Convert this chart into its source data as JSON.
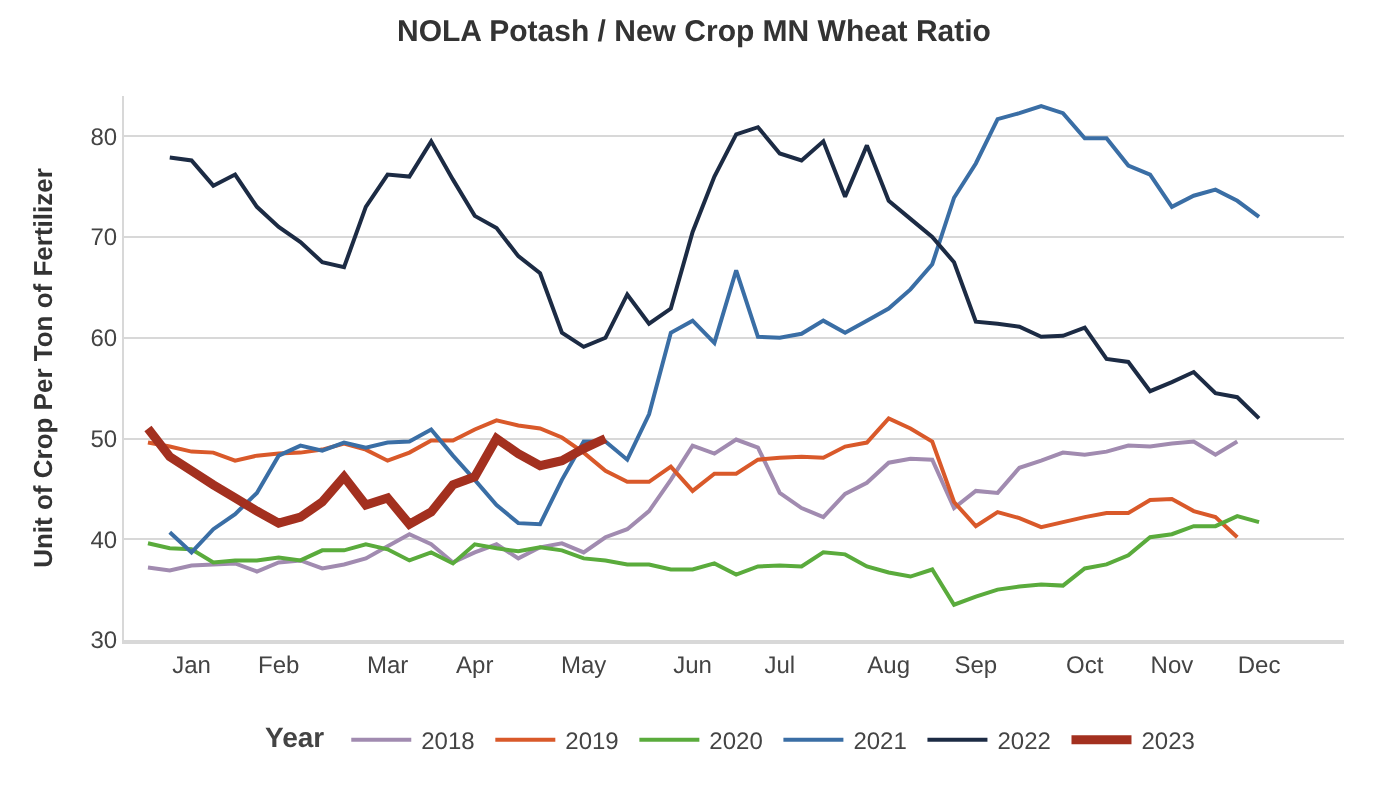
{
  "chart_data": {
    "type": "line",
    "title": "NOLA Potash / New Crop MN Wheat Ratio",
    "ylabel": "Unit of Crop Per Ton of Fertilizer",
    "legend_title": "Year",
    "categories": [
      null,
      null,
      "Jan",
      null,
      null,
      null,
      "Feb",
      null,
      null,
      null,
      null,
      "Mar",
      null,
      null,
      null,
      "Apr",
      null,
      null,
      null,
      null,
      "May",
      null,
      null,
      null,
      null,
      "Jun",
      null,
      null,
      null,
      "Jul",
      null,
      null,
      null,
      null,
      "Aug",
      null,
      null,
      null,
      "Sep",
      null,
      null,
      null,
      null,
      "Oct",
      null,
      null,
      null,
      "Nov",
      null,
      null,
      null,
      "Dec"
    ],
    "ylim": [
      30,
      84
    ],
    "yticks": [
      30,
      40,
      50,
      60,
      70,
      80
    ],
    "grid": "y",
    "legend": "bottom",
    "marker": "none",
    "line_style": "solid",
    "series": [
      {
        "name": "2018",
        "color": "#a18bb0",
        "values": [
          37.2,
          36.9,
          37.4,
          37.5,
          37.6,
          36.8,
          37.7,
          37.9,
          37.1,
          37.5,
          38.1,
          39.3,
          40.5,
          39.5,
          37.7,
          38.7,
          39.5,
          38.1,
          39.2,
          39.6,
          38.7,
          40.2,
          41.0,
          42.8,
          45.9,
          49.3,
          48.5,
          49.9,
          49.1,
          44.6,
          43.1,
          42.2,
          44.5,
          45.6,
          47.6,
          48.0,
          47.9,
          43.1,
          44.8,
          44.6,
          47.1,
          47.8,
          48.6,
          48.4,
          48.7,
          49.3,
          49.2,
          49.5,
          49.7,
          48.4,
          49.7,
          null
        ]
      },
      {
        "name": "2019",
        "color": "#d9592a",
        "values": [
          49.6,
          49.2,
          48.7,
          48.6,
          47.8,
          48.3,
          48.5,
          48.6,
          48.9,
          49.5,
          48.9,
          47.8,
          48.6,
          49.8,
          49.8,
          50.9,
          51.8,
          51.3,
          51.0,
          50.1,
          48.6,
          46.8,
          45.7,
          45.7,
          47.2,
          44.8,
          46.5,
          46.5,
          47.9,
          48.1,
          48.2,
          48.1,
          49.2,
          49.6,
          52.0,
          51.0,
          49.7,
          43.7,
          41.3,
          42.7,
          42.1,
          41.2,
          41.7,
          42.2,
          42.6,
          42.6,
          43.9,
          44.0,
          42.8,
          42.2,
          40.2,
          null
        ]
      },
      {
        "name": "2020",
        "color": "#5aab3c",
        "values": [
          39.6,
          39.1,
          39.0,
          37.7,
          37.9,
          37.9,
          38.2,
          37.9,
          38.9,
          38.9,
          39.5,
          39.0,
          37.9,
          38.7,
          37.6,
          39.5,
          39.1,
          38.8,
          39.2,
          38.9,
          38.1,
          37.9,
          37.5,
          37.5,
          37.0,
          37.0,
          37.6,
          36.5,
          37.3,
          37.4,
          37.3,
          38.7,
          38.5,
          37.3,
          36.7,
          36.3,
          37.0,
          33.5,
          34.3,
          35.0,
          35.3,
          35.5,
          35.4,
          37.1,
          37.5,
          38.4,
          40.2,
          40.5,
          41.3,
          41.3,
          42.3,
          41.7
        ]
      },
      {
        "name": "2021",
        "color": "#3a6ea5",
        "values": [
          null,
          40.7,
          38.7,
          41.0,
          42.5,
          44.6,
          48.3,
          49.3,
          48.8,
          49.6,
          49.1,
          49.6,
          49.7,
          50.9,
          48.3,
          45.9,
          43.4,
          41.6,
          41.5,
          45.9,
          49.7,
          49.7,
          47.9,
          52.4,
          60.5,
          61.7,
          59.5,
          66.7,
          60.1,
          60.0,
          60.4,
          61.7,
          60.5,
          61.7,
          62.9,
          64.8,
          67.3,
          73.9,
          77.3,
          81.7,
          82.3,
          83.0,
          82.3,
          79.8,
          79.8,
          77.1,
          76.2,
          73.0,
          74.1,
          74.7,
          73.6,
          72.0
        ]
      },
      {
        "name": "2022",
        "color": "#1c2b44",
        "values": [
          null,
          77.9,
          77.6,
          75.1,
          76.2,
          73.0,
          71.0,
          69.5,
          67.5,
          67.0,
          73.0,
          76.2,
          76.0,
          79.5,
          75.7,
          72.1,
          70.9,
          68.1,
          66.4,
          60.5,
          59.1,
          60.0,
          64.3,
          61.4,
          62.9,
          70.5,
          76.0,
          80.2,
          80.9,
          78.3,
          77.6,
          79.5,
          74.0,
          79.1,
          73.6,
          71.8,
          70.0,
          67.5,
          61.6,
          61.4,
          61.1,
          60.1,
          60.2,
          61.0,
          57.9,
          57.6,
          54.7,
          55.6,
          56.6,
          54.5,
          54.1,
          52.0
        ]
      },
      {
        "name": "2023",
        "color": "#a3301f",
        "values": [
          51.0,
          48.2,
          46.8,
          45.4,
          44.1,
          42.8,
          41.6,
          42.2,
          43.7,
          46.2,
          43.4,
          44.1,
          41.5,
          42.7,
          45.4,
          46.2,
          50.0,
          48.5,
          47.3,
          47.8,
          49.0,
          50.0,
          null,
          null,
          null,
          null,
          null,
          null,
          null,
          null,
          null,
          null,
          null,
          null,
          null,
          null,
          null,
          null,
          null,
          null,
          null,
          null,
          null,
          null,
          null,
          null,
          null,
          null,
          null,
          null,
          null,
          null
        ]
      }
    ]
  }
}
